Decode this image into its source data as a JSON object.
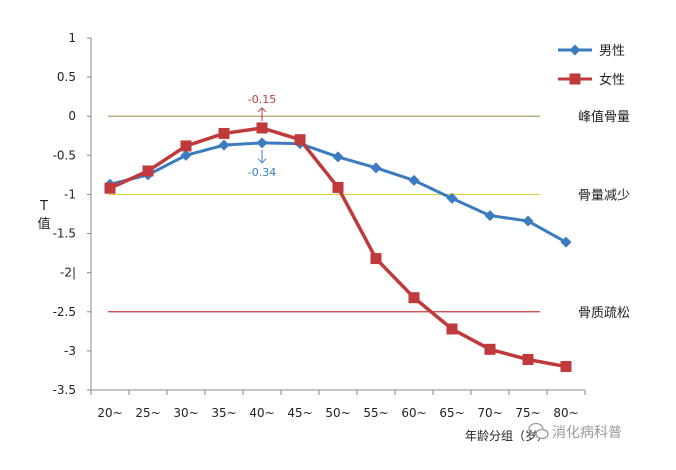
{
  "chart_data": {
    "type": "line",
    "xlabel": "年龄分组（岁）",
    "ylabel": [
      "T",
      "值"
    ],
    "categories": [
      "20~",
      "25~",
      "30~",
      "35~",
      "40~",
      "45~",
      "50~",
      "55~",
      "60~",
      "65~",
      "70~",
      "75~",
      "80~"
    ],
    "ylim": [
      -3.5,
      1
    ],
    "yticks": [
      1,
      0.5,
      0,
      -0.5,
      -1,
      -1.5,
      -2,
      -2.5,
      -3,
      -3.5
    ],
    "ytick_labels": [
      "1",
      "0.5",
      "0",
      "-0.5",
      "-1",
      "-1.5",
      "-2|",
      "-2.5",
      "-3",
      "-3.5"
    ],
    "series": [
      {
        "name": "男性",
        "color": "#3b7bbf",
        "marker": "diamond",
        "values": [
          -0.87,
          -0.75,
          -0.5,
          -0.37,
          -0.34,
          -0.35,
          -0.52,
          -0.66,
          -0.82,
          -1.05,
          -1.27,
          -1.34,
          -1.61
        ]
      },
      {
        "name": "女性",
        "color": "#c0393b",
        "marker": "square",
        "values": [
          -0.92,
          -0.7,
          -0.38,
          -0.22,
          -0.15,
          -0.3,
          -0.91,
          -1.82,
          -2.32,
          -2.72,
          -2.98,
          -3.11,
          -3.2
        ]
      }
    ],
    "reference_lines": [
      {
        "value": 0,
        "label": "峰值骨量",
        "color": "#a8a66a"
      },
      {
        "value": -1,
        "label": "骨量减少",
        "color": "#e0d23a"
      },
      {
        "value": -2.5,
        "label": "骨质疏松",
        "color": "#c43b3b"
      }
    ],
    "annotations": [
      {
        "text": "-0.15",
        "category_index": 4,
        "series": 1,
        "color": "#c0393b",
        "arrow": "up"
      },
      {
        "text": "-0.34",
        "category_index": 4,
        "series": 0,
        "color": "#3b7bbf",
        "arrow": "down"
      }
    ],
    "legend_position": "top-right",
    "grid": false
  },
  "watermark": "消化病科普"
}
